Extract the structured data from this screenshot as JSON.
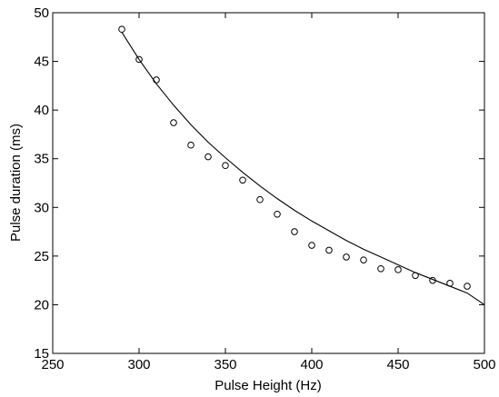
{
  "chart_data": {
    "type": "scatter",
    "xlabel": "Pulse Height (Hz)",
    "ylabel": "Pulse duration (ms)",
    "xlim": [
      250,
      500
    ],
    "ylim": [
      15,
      50
    ],
    "xticks": [
      250,
      300,
      350,
      400,
      450,
      500
    ],
    "yticks": [
      15,
      20,
      25,
      30,
      35,
      40,
      45,
      50
    ],
    "grid": false,
    "series": [
      {
        "marker": "open-circle",
        "x": [
          290,
          300,
          310,
          320,
          330,
          340,
          350,
          360,
          370,
          380,
          390,
          400,
          410,
          420,
          430,
          440,
          450,
          460,
          470,
          480,
          490
        ],
        "y": [
          48.3,
          45.2,
          43.1,
          38.7,
          36.4,
          35.2,
          34.3,
          32.8,
          30.8,
          29.3,
          27.5,
          26.1,
          25.6,
          24.9,
          24.6,
          23.7,
          23.6,
          23.0,
          22.5,
          22.2,
          21.9
        ]
      },
      {
        "style": "solid-line",
        "x": [
          290,
          300,
          310,
          320,
          330,
          340,
          350,
          360,
          370,
          380,
          390,
          400,
          410,
          420,
          430,
          440,
          450,
          460,
          470,
          480,
          490,
          500
        ],
        "y": [
          48.0,
          45.2,
          42.7,
          40.5,
          38.5,
          36.7,
          35.1,
          33.6,
          32.2,
          30.9,
          29.7,
          28.6,
          27.6,
          26.6,
          25.7,
          24.9,
          24.1,
          23.3,
          22.6,
          21.9,
          21.2,
          20.0
        ]
      }
    ]
  }
}
